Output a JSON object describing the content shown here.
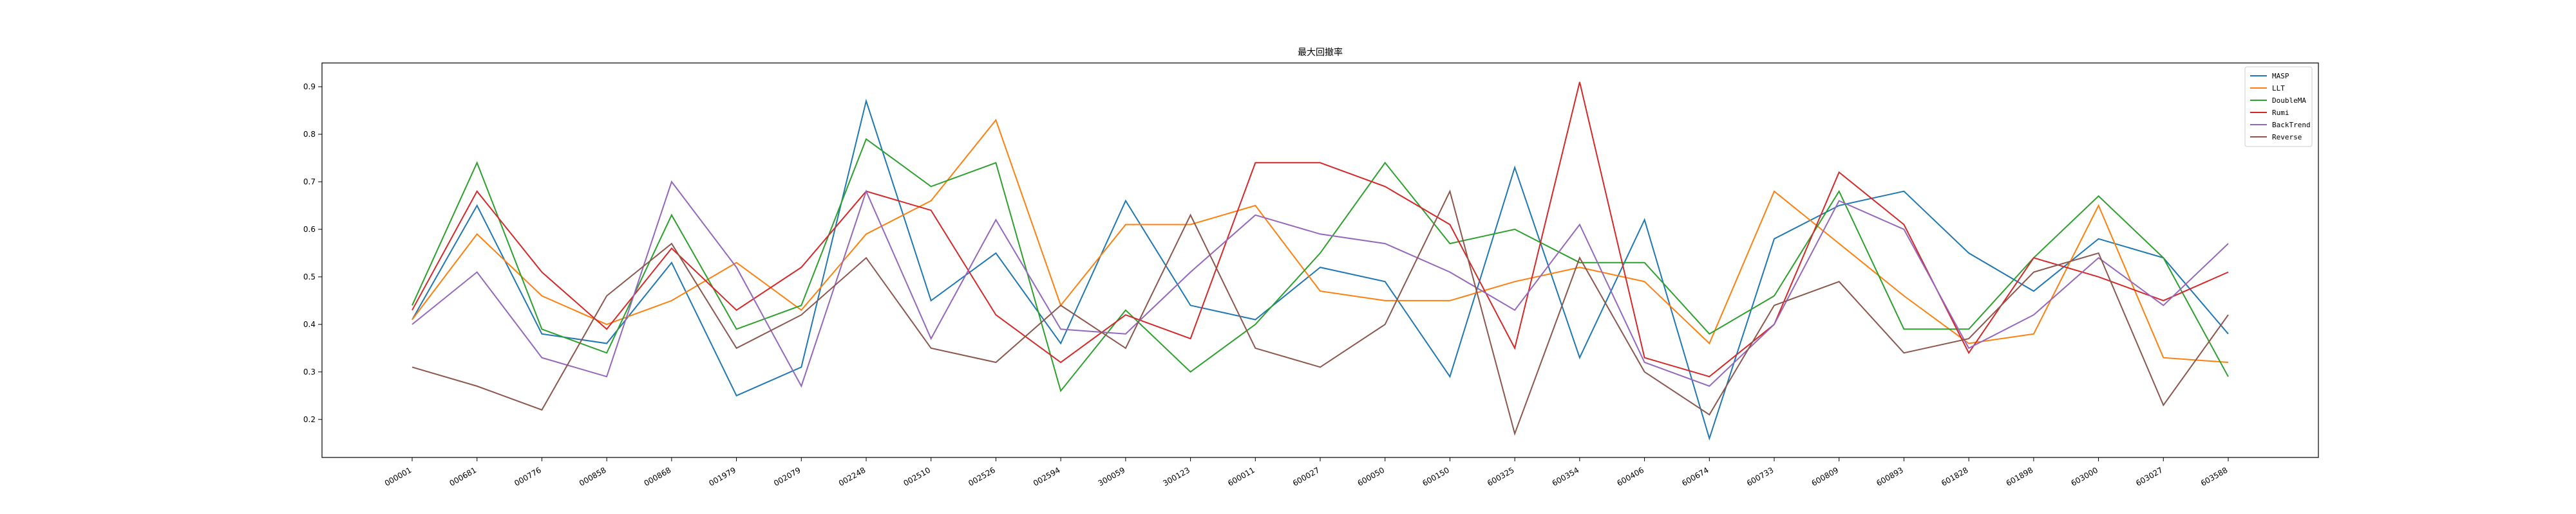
{
  "chart_data": {
    "type": "line",
    "title": "最大回撤率",
    "xlabel": "",
    "ylabel": "",
    "ylim": [
      0.12,
      0.95
    ],
    "yticks": [
      0.2,
      0.3,
      0.4,
      0.5,
      0.6,
      0.7,
      0.8,
      0.9
    ],
    "grid": false,
    "legend_position": "top-right",
    "categories": [
      "000001",
      "000681",
      "000776",
      "000858",
      "000868",
      "001979",
      "002079",
      "002248",
      "002510",
      "002526",
      "002594",
      "300059",
      "300123",
      "600011",
      "600027",
      "600050",
      "600150",
      "600325",
      "600354",
      "600406",
      "600674",
      "600733",
      "600809",
      "600893",
      "601828",
      "601898",
      "603000",
      "603027",
      "603588"
    ],
    "series": [
      {
        "name": "MASP",
        "color": "#1f77b4",
        "values": [
          0.41,
          0.65,
          0.38,
          0.36,
          0.53,
          0.25,
          0.31,
          0.87,
          0.45,
          0.55,
          0.36,
          0.66,
          0.44,
          0.41,
          0.52,
          0.49,
          0.29,
          0.73,
          0.33,
          0.62,
          0.16,
          0.58,
          0.65,
          0.68,
          0.55,
          0.47,
          0.58,
          0.54,
          0.38
        ]
      },
      {
        "name": "LLT",
        "color": "#ff7f0e",
        "values": [
          0.41,
          0.59,
          0.46,
          0.4,
          0.45,
          0.53,
          0.43,
          0.59,
          0.66,
          0.83,
          0.44,
          0.61,
          0.61,
          0.65,
          0.47,
          0.45,
          0.45,
          0.49,
          0.52,
          0.49,
          0.36,
          0.68,
          0.57,
          0.46,
          0.36,
          0.38,
          0.65,
          0.33,
          0.32
        ]
      },
      {
        "name": "DoubleMA",
        "color": "#2ca02c",
        "values": [
          0.44,
          0.74,
          0.39,
          0.34,
          0.63,
          0.39,
          0.44,
          0.79,
          0.69,
          0.74,
          0.26,
          0.43,
          0.3,
          0.4,
          0.55,
          0.74,
          0.57,
          0.6,
          0.53,
          0.53,
          0.38,
          0.46,
          0.68,
          0.39,
          0.39,
          0.54,
          0.67,
          0.54,
          0.29
        ]
      },
      {
        "name": "Rumi",
        "color": "#d62728",
        "values": [
          0.43,
          0.68,
          0.51,
          0.39,
          0.56,
          0.43,
          0.52,
          0.68,
          0.64,
          0.42,
          0.32,
          0.42,
          0.37,
          0.74,
          0.74,
          0.69,
          0.61,
          0.35,
          0.91,
          0.33,
          0.29,
          0.4,
          0.72,
          0.61,
          0.34,
          0.54,
          0.5,
          0.45,
          0.51
        ]
      },
      {
        "name": "BackTrend",
        "color": "#9467bd",
        "values": [
          0.4,
          0.51,
          0.33,
          0.29,
          0.7,
          0.52,
          0.27,
          0.68,
          0.37,
          0.62,
          0.39,
          0.38,
          0.51,
          0.63,
          0.59,
          0.57,
          0.51,
          0.43,
          0.61,
          0.32,
          0.27,
          0.4,
          0.66,
          0.6,
          0.35,
          0.42,
          0.54,
          0.44,
          0.57
        ]
      },
      {
        "name": "Reverse",
        "color": "#8c564b",
        "values": [
          0.31,
          0.27,
          0.22,
          0.46,
          0.57,
          0.35,
          0.42,
          0.54,
          0.35,
          0.32,
          0.44,
          0.35,
          0.63,
          0.35,
          0.31,
          0.4,
          0.68,
          0.17,
          0.54,
          0.3,
          0.21,
          0.44,
          0.49,
          0.34,
          0.37,
          0.51,
          0.55,
          0.23,
          0.42
        ]
      }
    ]
  }
}
